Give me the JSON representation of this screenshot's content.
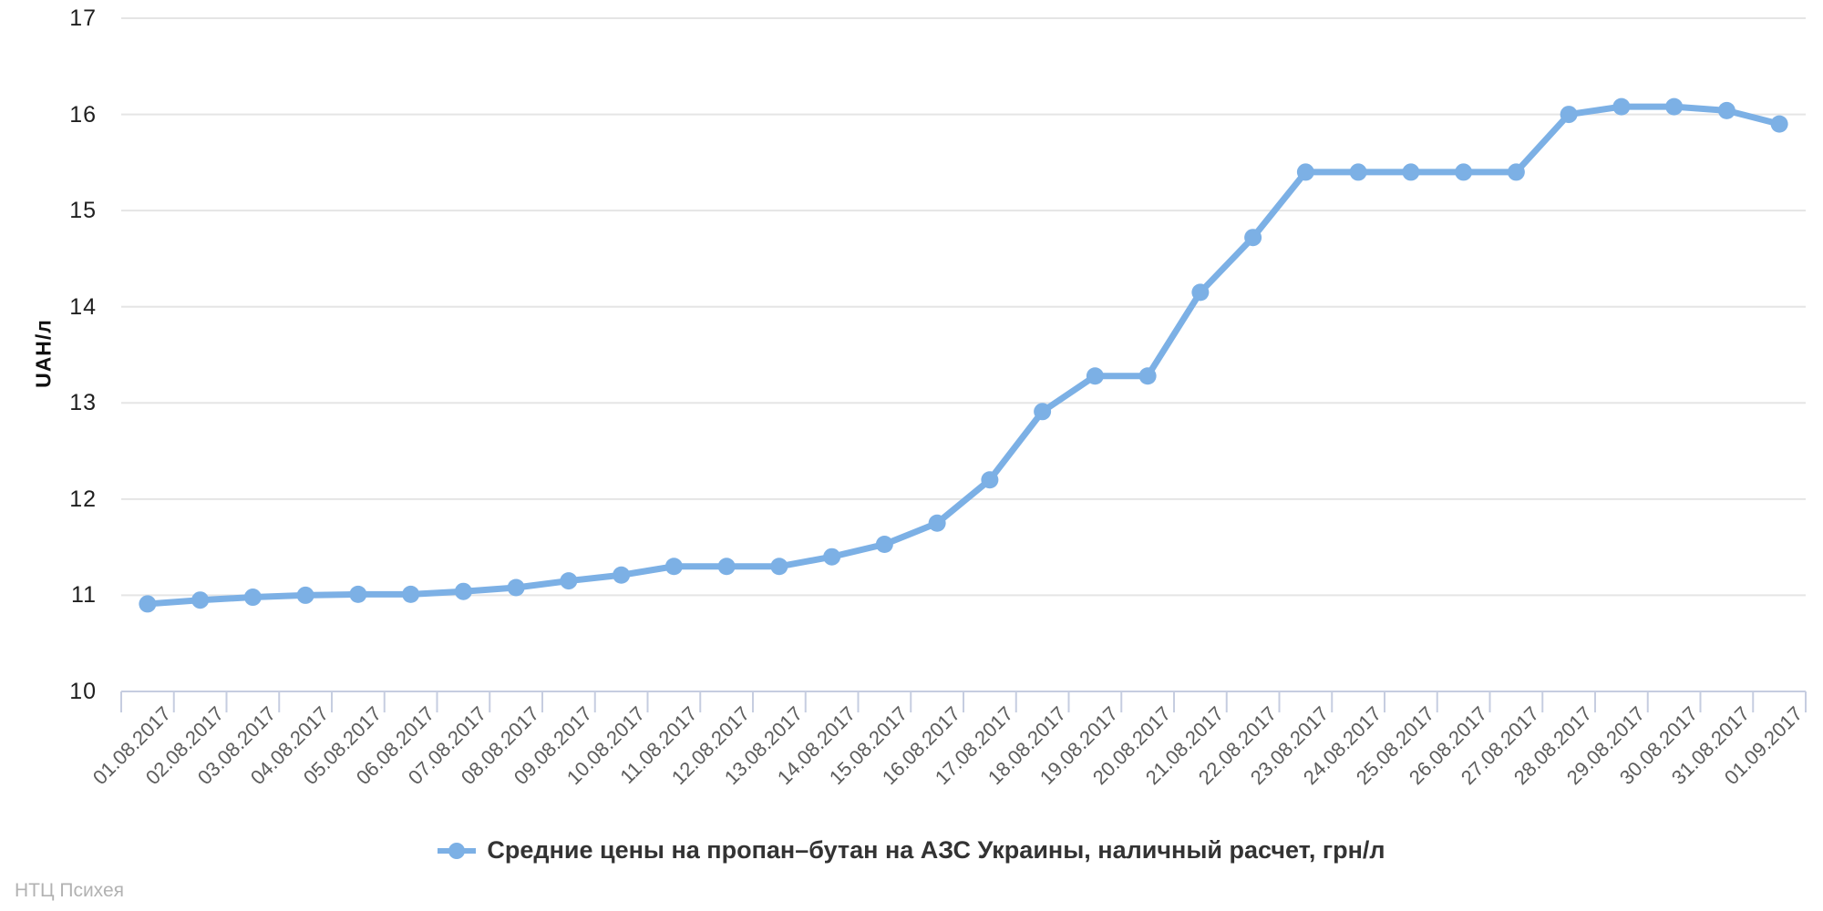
{
  "footer": {
    "credit": "НТЦ Психея"
  },
  "colors": {
    "series": "#7cb0e5",
    "grid": "#e5e5e5",
    "axis": "#c6cde0",
    "x_label": "#5d5d5d",
    "y_label": "#1f1f1f",
    "legend_text": "#333333",
    "credit_text": "#b2b2b2"
  },
  "chart_data": {
    "type": "line",
    "title": "",
    "xlabel": "",
    "ylabel": "UAH/л",
    "legend": "Средние цены на пропан–бутан на АЗС Украины, наличный расчет, грн/л",
    "legend_position": "bottom center",
    "grid": "horizontal gridlines only",
    "ylim": [
      10,
      17
    ],
    "yticks": [
      10,
      11,
      12,
      13,
      14,
      15,
      16,
      17
    ],
    "categories": [
      "01.08.2017",
      "02.08.2017",
      "03.08.2017",
      "04.08.2017",
      "05.08.2017",
      "06.08.2017",
      "07.08.2017",
      "08.08.2017",
      "09.08.2017",
      "10.08.2017",
      "11.08.2017",
      "12.08.2017",
      "13.08.2017",
      "14.08.2017",
      "15.08.2017",
      "16.08.2017",
      "17.08.2017",
      "18.08.2017",
      "19.08.2017",
      "20.08.2017",
      "21.08.2017",
      "22.08.2017",
      "23.08.2017",
      "24.08.2017",
      "25.08.2017",
      "26.08.2017",
      "27.08.2017",
      "28.08.2017",
      "29.08.2017",
      "30.08.2017",
      "31.08.2017",
      "01.09.2017"
    ],
    "series": [
      {
        "name": "Средние цены на пропан–бутан на АЗС Украины, наличный расчет, грн/л",
        "values": [
          10.91,
          10.95,
          10.98,
          11.0,
          11.01,
          11.01,
          11.04,
          11.08,
          11.15,
          11.21,
          11.3,
          11.3,
          11.3,
          11.4,
          11.53,
          11.75,
          12.2,
          12.91,
          13.28,
          13.28,
          14.15,
          14.72,
          15.4,
          15.4,
          15.4,
          15.4,
          15.4,
          16.0,
          16.08,
          16.08,
          16.04,
          15.9
        ]
      }
    ]
  }
}
